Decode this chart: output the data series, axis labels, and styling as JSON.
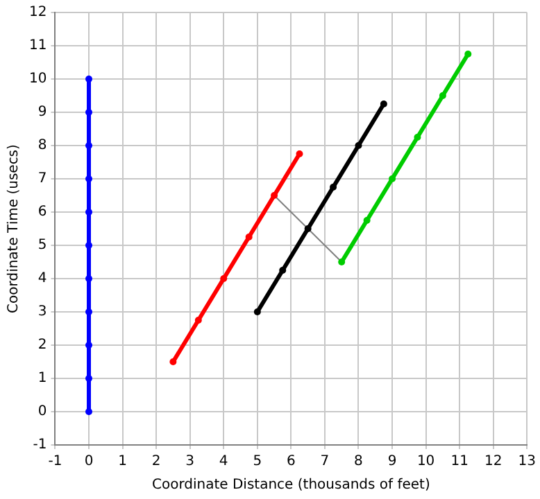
{
  "chart_data": {
    "type": "line",
    "xlabel": "Coordinate Distance (thousands of feet)",
    "ylabel": "Coordinate Time (usecs)",
    "xlim": [
      -1,
      13
    ],
    "xticks": [
      -1,
      0,
      1,
      2,
      3,
      4,
      5,
      6,
      7,
      8,
      9,
      10,
      11,
      12,
      13
    ],
    "ylim": [
      -1,
      12
    ],
    "yticks": [
      -1,
      0,
      1,
      2,
      3,
      4,
      5,
      6,
      7,
      8,
      9,
      10,
      11,
      12
    ],
    "grid": true,
    "legend": false,
    "marker": "circle",
    "line_style": "solid",
    "series": [
      {
        "color": "#0000ff",
        "x": [
          0,
          0,
          0,
          0,
          0,
          0,
          0,
          0,
          0,
          0,
          0
        ],
        "values": [
          0,
          1,
          2,
          3,
          4,
          5,
          6,
          7,
          8,
          9,
          10
        ]
      },
      {
        "color": "#ff0000",
        "x": [
          2.5,
          3.25,
          4,
          4.75,
          5.5,
          6.25
        ],
        "values": [
          1.5,
          2.75,
          4,
          5.25,
          6.5,
          7.75
        ]
      },
      {
        "color": "#000000",
        "x": [
          5,
          5.75,
          6.5,
          7.25,
          8,
          8.75
        ],
        "values": [
          3,
          4.25,
          5.5,
          6.75,
          8,
          9.25
        ]
      },
      {
        "color": "#00cc00",
        "x": [
          7.5,
          8.25,
          9,
          9.75,
          10.5,
          11.25
        ],
        "values": [
          4.5,
          5.75,
          7,
          8.25,
          9.5,
          10.75
        ]
      },
      {
        "color": "#808080",
        "marker": "none",
        "x": [
          5.5,
          6.5,
          7.5
        ],
        "values": [
          6.5,
          5.5,
          4.5
        ]
      }
    ]
  }
}
